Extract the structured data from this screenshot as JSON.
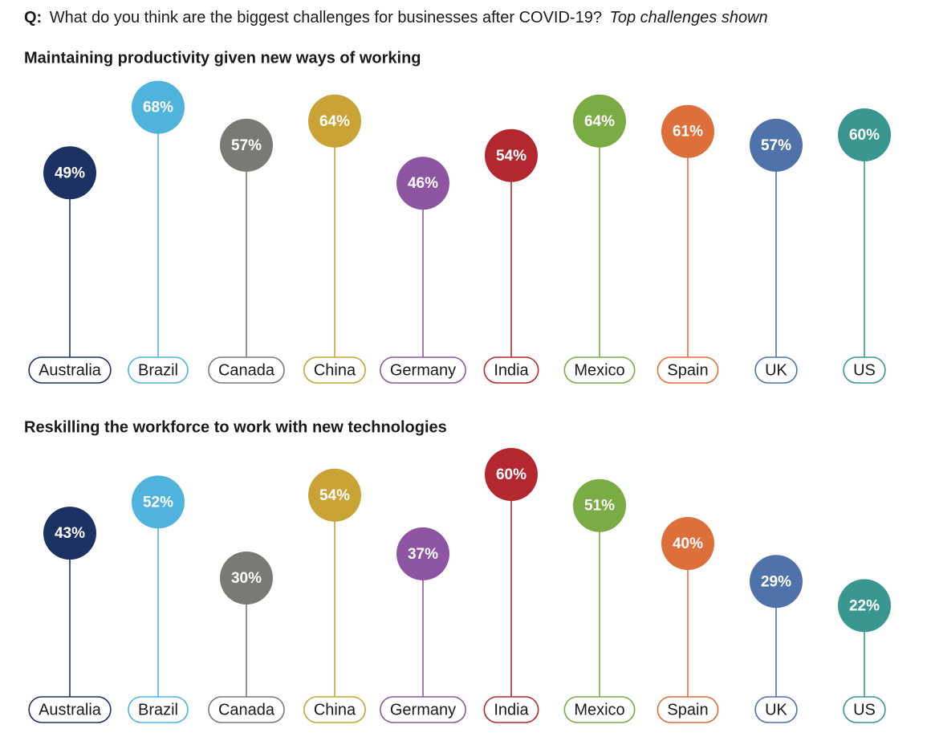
{
  "header": {
    "prefix": "Q:",
    "question": "What do you think are the biggest challenges for businesses after COVID-19?",
    "note": "Top challenges shown"
  },
  "chart_data": [
    {
      "type": "lollipop",
      "title": "Maintaining productivity given new ways of working",
      "categories": [
        "Australia",
        "Brazil",
        "Canada",
        "China",
        "Germany",
        "India",
        "Mexico",
        "Spain",
        "UK",
        "US"
      ],
      "values": [
        49,
        68,
        57,
        64,
        46,
        54,
        64,
        61,
        57,
        60
      ],
      "value_labels": [
        "49%",
        "68%",
        "57%",
        "64%",
        "46%",
        "54%",
        "64%",
        "61%",
        "57%",
        "60%"
      ],
      "colors": [
        "#1b3263",
        "#4fb3dc",
        "#7a7a74",
        "#c9a336",
        "#8e55a3",
        "#b3282e",
        "#7aab45",
        "#dc6f3a",
        "#4f72a8",
        "#3a978f"
      ]
    },
    {
      "type": "lollipop",
      "title": "Reskilling the workforce to work with new technologies",
      "categories": [
        "Australia",
        "Brazil",
        "Canada",
        "China",
        "Germany",
        "India",
        "Mexico",
        "Spain",
        "UK",
        "US"
      ],
      "values": [
        43,
        52,
        30,
        54,
        37,
        60,
        51,
        40,
        29,
        22
      ],
      "value_labels": [
        "43%",
        "52%",
        "30%",
        "54%",
        "37%",
        "60%",
        "51%",
        "40%",
        "29%",
        "22%"
      ],
      "colors": [
        "#1b3263",
        "#4fb3dc",
        "#7a7a74",
        "#c9a336",
        "#8e55a3",
        "#b3282e",
        "#7aab45",
        "#dc6f3a",
        "#4f72a8",
        "#3a978f"
      ]
    }
  ]
}
